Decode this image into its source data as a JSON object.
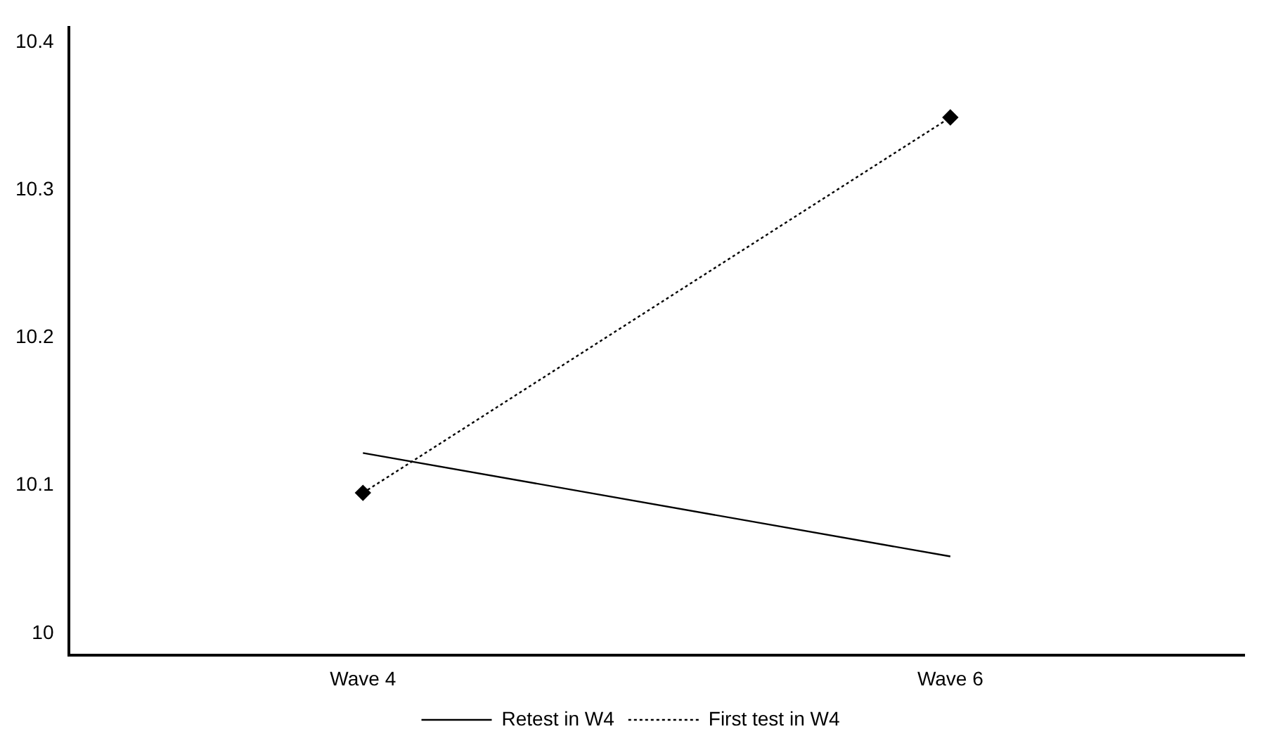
{
  "chart_data": {
    "type": "line",
    "categories": [
      "Wave 4",
      "Wave 6"
    ],
    "series": [
      {
        "name": "Retest in W4",
        "color": "#000000",
        "values": [
          10.122,
          10.052
        ],
        "line_style": "solid",
        "marker": "none"
      },
      {
        "name": "First test in W4",
        "color": "#000000",
        "values": [
          10.095,
          10.349
        ],
        "line_style": "dotted",
        "marker": "diamond"
      }
    ],
    "ylim": [
      9.985,
      10.41
    ],
    "yticks": [
      10,
      10.1,
      10.2,
      10.3,
      10.4
    ],
    "grid": false,
    "legend": "bottom"
  }
}
